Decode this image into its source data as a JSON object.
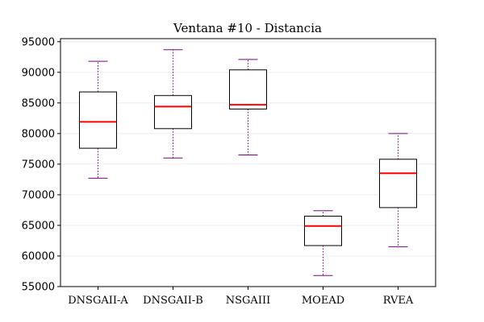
{
  "chart_data": {
    "type": "box",
    "title": "Ventana #10 - Distancia",
    "xlabel": "",
    "ylabel": "",
    "categories": [
      "DNSGAII-A",
      "DNSGAII-B",
      "NSGAIII",
      "MOEAD",
      "RVEA"
    ],
    "ylim": [
      55000,
      95500
    ],
    "yticks": [
      55000,
      60000,
      65000,
      70000,
      75000,
      80000,
      85000,
      90000,
      95000
    ],
    "grid": "horizontal",
    "boxes": [
      {
        "category": "DNSGAII-A",
        "whisker_low": 72700,
        "q1": 77600,
        "median": 81900,
        "q3": 86800,
        "whisker_high": 91800
      },
      {
        "category": "DNSGAII-B",
        "whisker_low": 76000,
        "q1": 80800,
        "median": 84400,
        "q3": 86200,
        "whisker_high": 93700
      },
      {
        "category": "NSGAIII",
        "whisker_low": 76500,
        "q1": 84000,
        "median": 84700,
        "q3": 90400,
        "whisker_high": 92100
      },
      {
        "category": "MOEAD",
        "whisker_low": 56800,
        "q1": 61700,
        "median": 64900,
        "q3": 66500,
        "whisker_high": 67400
      },
      {
        "category": "RVEA",
        "whisker_low": 61500,
        "q1": 67900,
        "median": 73500,
        "q3": 75800,
        "whisker_high": 80000
      }
    ],
    "colors": {
      "box": "#000000",
      "median": "#ff0000",
      "whisker": "#800080",
      "grid": "#ebebeb"
    }
  }
}
